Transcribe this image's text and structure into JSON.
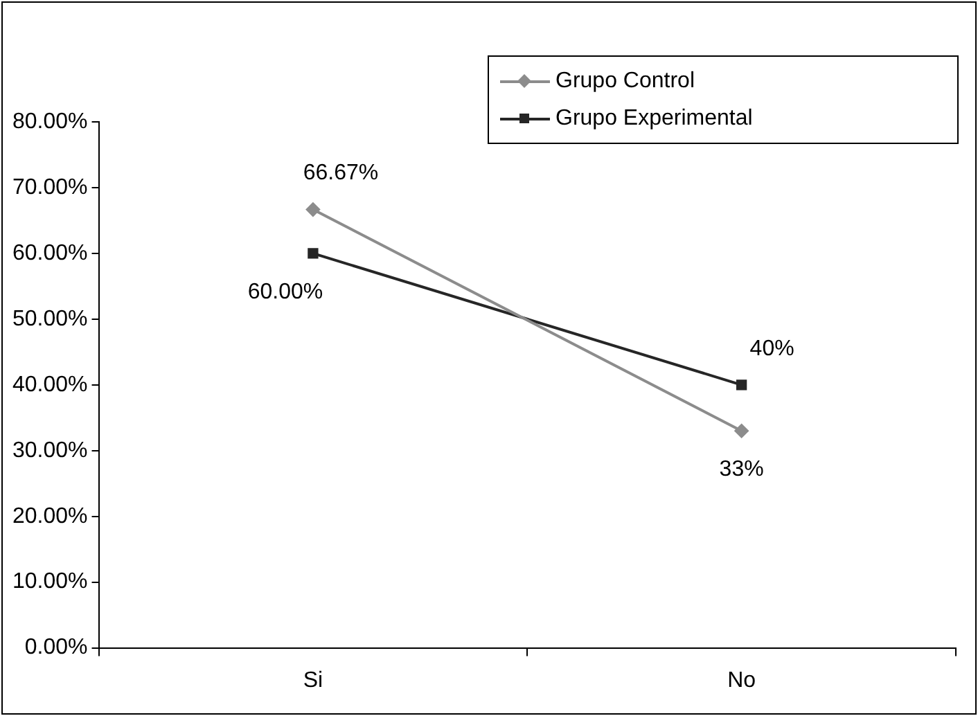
{
  "chart_data": {
    "type": "line",
    "categories": [
      "Si",
      "No"
    ],
    "series": [
      {
        "name": "Grupo Control",
        "color": "#8c8c8c",
        "marker": "diamond",
        "values": [
          66.67,
          33
        ],
        "value_labels": [
          "66.67%",
          "33%"
        ]
      },
      {
        "name": "Grupo Experimental",
        "color": "#262626",
        "marker": "square",
        "values": [
          60,
          40
        ],
        "value_labels": [
          "60.00%",
          "40%"
        ]
      }
    ],
    "ylim": [
      0,
      80
    ],
    "yticks": [
      {
        "value": 0,
        "label": "0.00%"
      },
      {
        "value": 10,
        "label": "10.00%"
      },
      {
        "value": 20,
        "label": "20.00%"
      },
      {
        "value": 30,
        "label": "30.00%"
      },
      {
        "value": 40,
        "label": "40.00%"
      },
      {
        "value": 50,
        "label": "50.00%"
      },
      {
        "value": 60,
        "label": "60.00%"
      },
      {
        "value": 70,
        "label": "70.00%"
      },
      {
        "value": 80,
        "label": "80.00%"
      }
    ],
    "grid": false,
    "legend": "top right",
    "line_style": "solid"
  }
}
